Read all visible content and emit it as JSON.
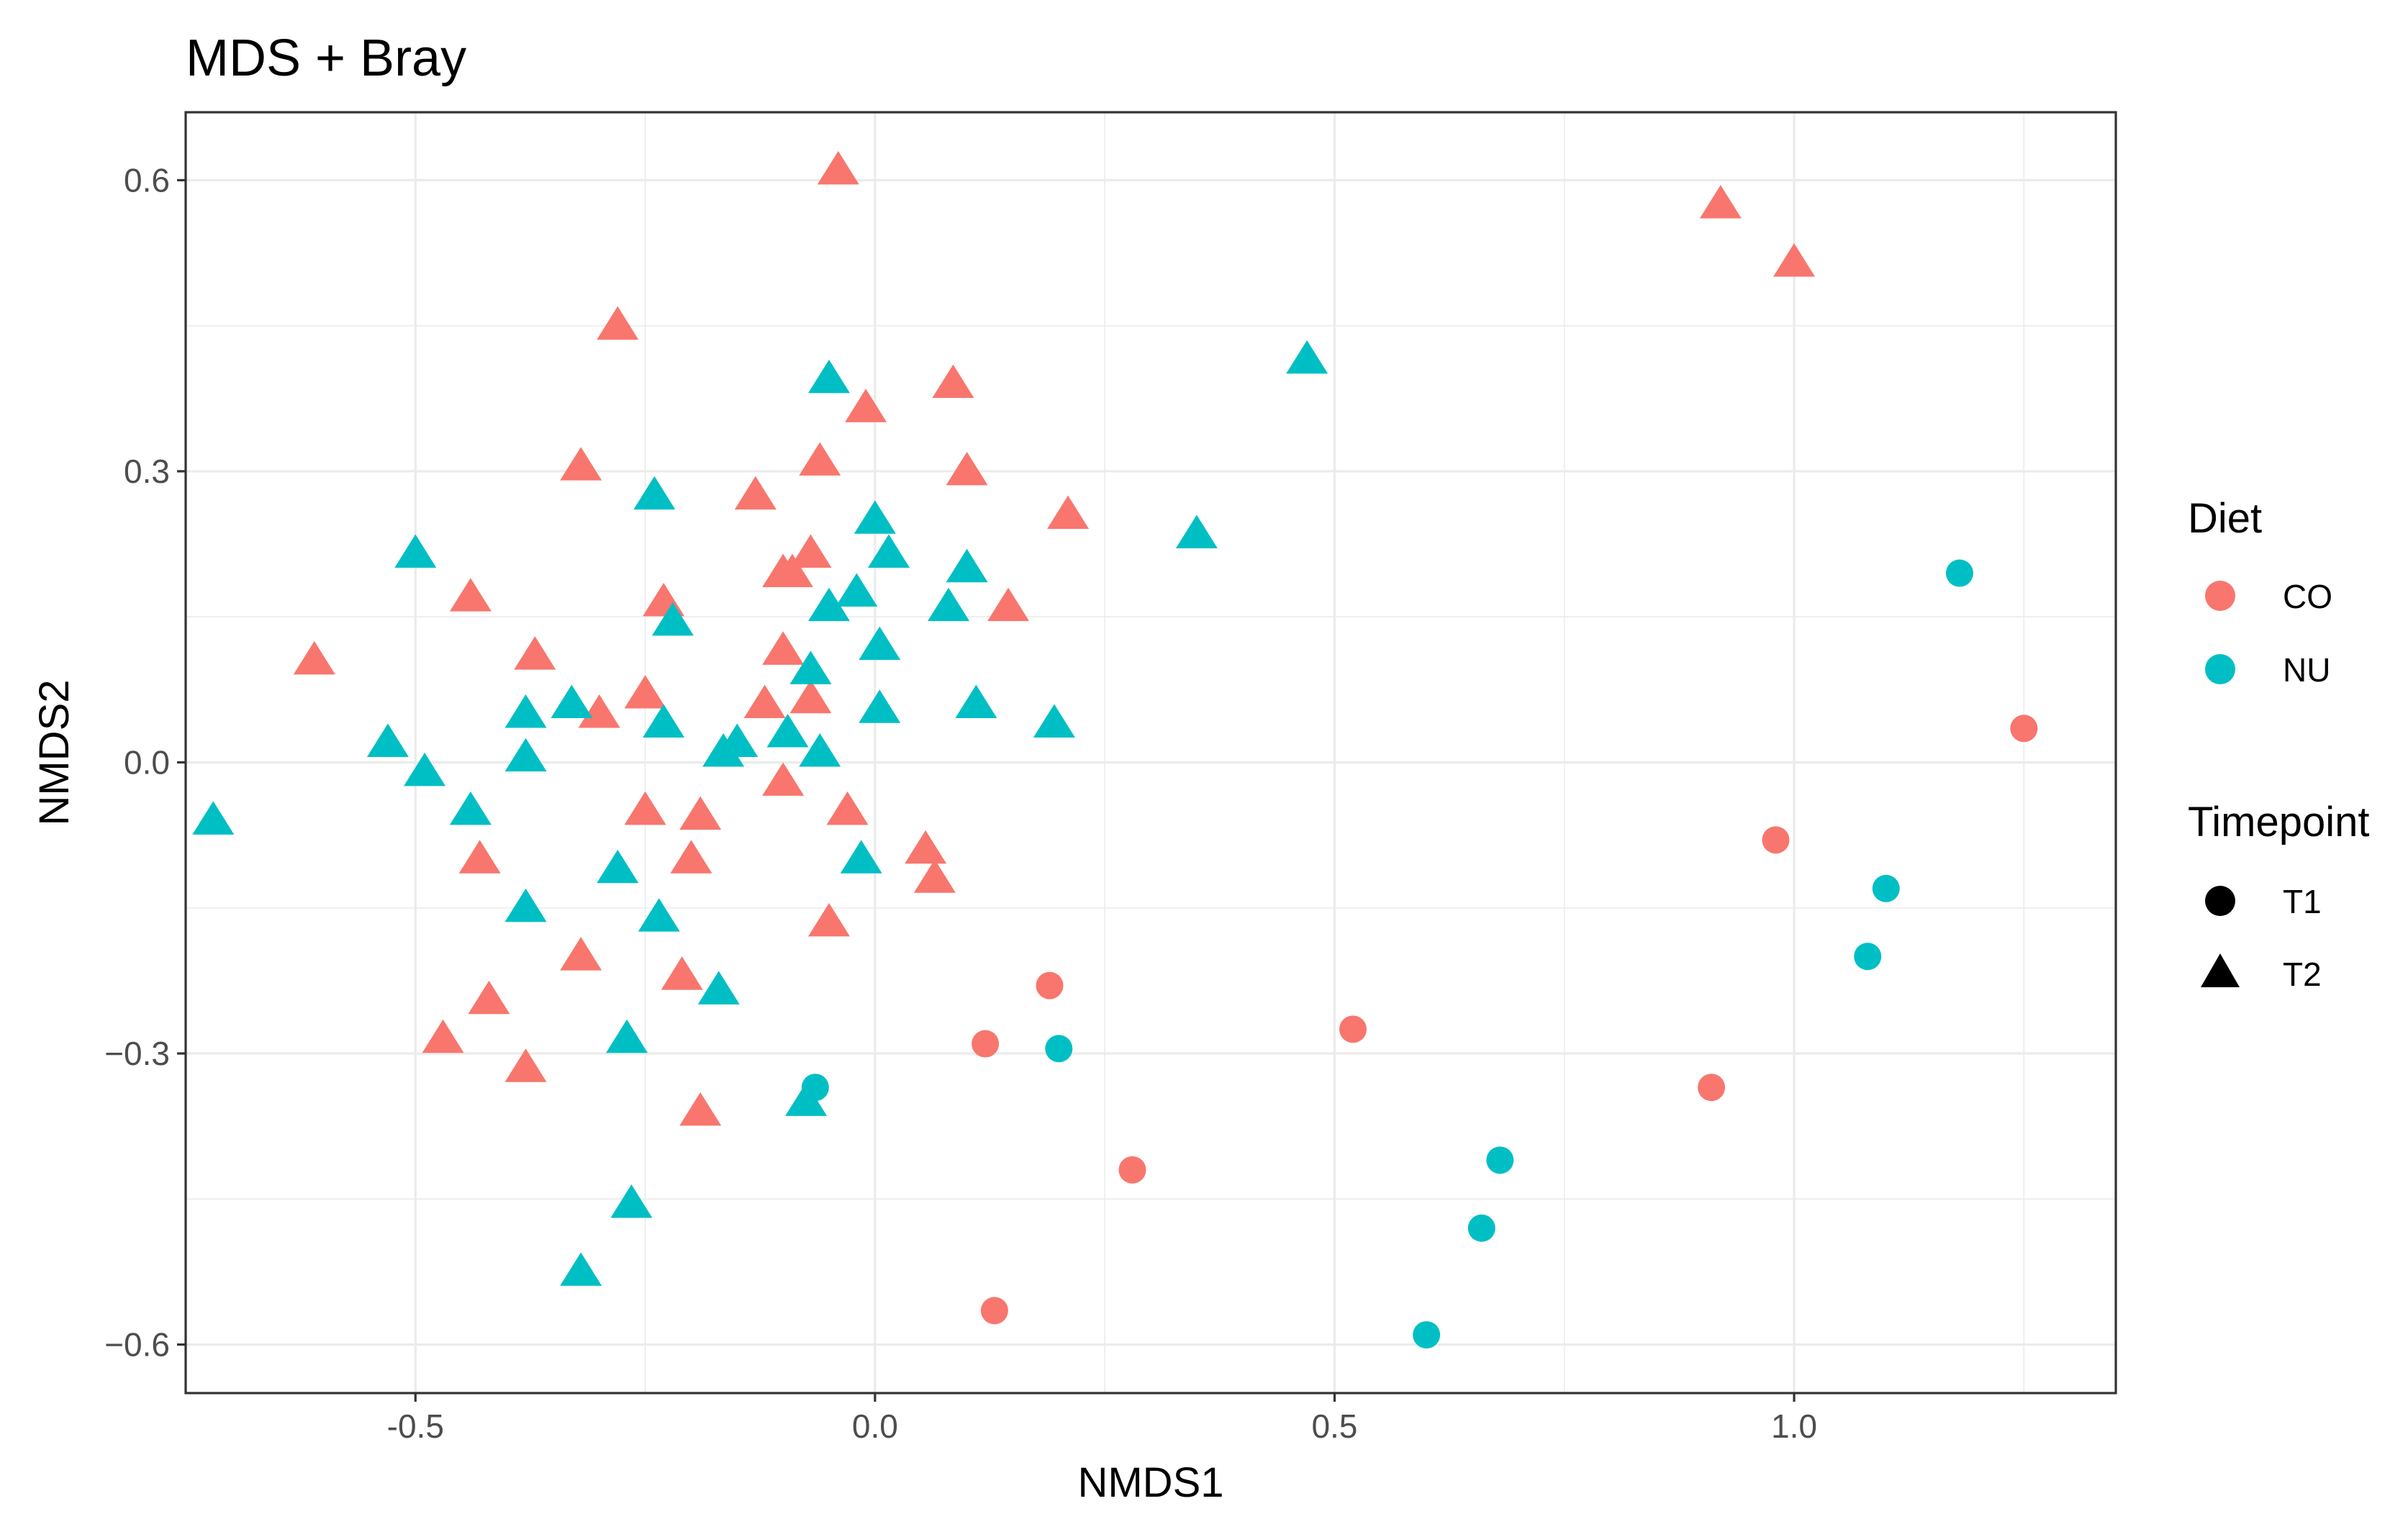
{
  "chart_data": {
    "type": "scatter",
    "title": "MDS + Bray",
    "xlabel": "NMDS1",
    "ylabel": "NMDS2",
    "xlim": [
      -0.75,
      1.35
    ],
    "ylim": [
      -0.65,
      0.67
    ],
    "x_ticks": [
      -0.5,
      0.0,
      0.5,
      1.0
    ],
    "x_tick_labels": [
      "-0.5",
      "0.0",
      "0.5",
      "1.0"
    ],
    "y_ticks": [
      -0.6,
      -0.3,
      0.0,
      0.3,
      0.6
    ],
    "y_tick_labels": [
      "−0.6",
      "−0.3",
      "0.0",
      "0.3",
      "0.6"
    ],
    "grid": true,
    "legend_placement": "right",
    "color_legend": {
      "title": "Diet",
      "entries": [
        {
          "label": "CO",
          "color": "#F8766D"
        },
        {
          "label": "NU",
          "color": "#00BFC4"
        }
      ]
    },
    "shape_legend": {
      "title": "Timepoint",
      "entries": [
        {
          "label": "T1",
          "shape": "circle"
        },
        {
          "label": "T2",
          "shape": "triangle"
        }
      ]
    },
    "series": [
      {
        "name": "CO-T1",
        "diet": "CO",
        "timepoint": "T1",
        "points": [
          [
            0.19,
            -0.23
          ],
          [
            0.12,
            -0.29
          ],
          [
            0.28,
            -0.42
          ],
          [
            0.13,
            -0.565
          ],
          [
            0.52,
            -0.275
          ],
          [
            0.98,
            -0.08
          ],
          [
            0.91,
            -0.335
          ],
          [
            1.25,
            0.035
          ]
        ]
      },
      {
        "name": "NU-T1",
        "diet": "NU",
        "timepoint": "T1",
        "points": [
          [
            0.2,
            -0.295
          ],
          [
            -0.065,
            -0.335
          ],
          [
            0.68,
            -0.41
          ],
          [
            0.66,
            -0.48
          ],
          [
            0.6,
            -0.59
          ],
          [
            1.1,
            -0.13
          ],
          [
            1.08,
            -0.2
          ],
          [
            1.18,
            0.195
          ]
        ]
      },
      {
        "name": "CO-T2",
        "diet": "CO",
        "timepoint": "T2",
        "points": [
          [
            -0.04,
            0.61
          ],
          [
            0.92,
            0.575
          ],
          [
            1.0,
            0.515
          ],
          [
            -0.28,
            0.45
          ],
          [
            0.085,
            0.39
          ],
          [
            -0.01,
            0.365
          ],
          [
            -0.32,
            0.305
          ],
          [
            -0.06,
            0.31
          ],
          [
            0.1,
            0.3
          ],
          [
            -0.13,
            0.275
          ],
          [
            0.21,
            0.255
          ],
          [
            -0.07,
            0.215
          ],
          [
            -0.1,
            0.195
          ],
          [
            -0.09,
            0.195
          ],
          [
            -0.44,
            0.17
          ],
          [
            -0.23,
            0.165
          ],
          [
            0.145,
            0.16
          ],
          [
            -0.61,
            0.105
          ],
          [
            -0.37,
            0.11
          ],
          [
            -0.1,
            0.115
          ],
          [
            -0.25,
            0.07
          ],
          [
            -0.3,
            0.05
          ],
          [
            -0.12,
            0.06
          ],
          [
            -0.07,
            0.065
          ],
          [
            -0.1,
            -0.02
          ],
          [
            -0.25,
            -0.05
          ],
          [
            -0.19,
            -0.055
          ],
          [
            -0.03,
            -0.05
          ],
          [
            -0.43,
            -0.1
          ],
          [
            -0.2,
            -0.1
          ],
          [
            0.055,
            -0.09
          ],
          [
            0.065,
            -0.12
          ],
          [
            -0.05,
            -0.165
          ],
          [
            -0.32,
            -0.2
          ],
          [
            -0.21,
            -0.22
          ],
          [
            -0.42,
            -0.245
          ],
          [
            -0.47,
            -0.285
          ],
          [
            -0.38,
            -0.315
          ],
          [
            -0.19,
            -0.36
          ]
        ]
      },
      {
        "name": "NU-T2",
        "diet": "NU",
        "timepoint": "T2",
        "points": [
          [
            -0.05,
            0.395
          ],
          [
            0.47,
            0.415
          ],
          [
            -0.24,
            0.275
          ],
          [
            0.0,
            0.25
          ],
          [
            0.35,
            0.235
          ],
          [
            0.015,
            0.215
          ],
          [
            -0.5,
            0.215
          ],
          [
            0.1,
            0.2
          ],
          [
            -0.02,
            0.175
          ],
          [
            -0.05,
            0.16
          ],
          [
            0.08,
            0.16
          ],
          [
            -0.22,
            0.145
          ],
          [
            0.005,
            0.12
          ],
          [
            -0.07,
            0.095
          ],
          [
            -0.33,
            0.06
          ],
          [
            0.11,
            0.06
          ],
          [
            0.005,
            0.055
          ],
          [
            -0.38,
            0.05
          ],
          [
            -0.23,
            0.04
          ],
          [
            0.195,
            0.04
          ],
          [
            -0.095,
            0.03
          ],
          [
            -0.53,
            0.02
          ],
          [
            -0.15,
            0.02
          ],
          [
            -0.165,
            0.01
          ],
          [
            -0.06,
            0.01
          ],
          [
            -0.38,
            0.005
          ],
          [
            -0.49,
            -0.01
          ],
          [
            -0.44,
            -0.05
          ],
          [
            -0.72,
            -0.06
          ],
          [
            -0.015,
            -0.1
          ],
          [
            -0.28,
            -0.11
          ],
          [
            -0.38,
            -0.15
          ],
          [
            -0.235,
            -0.16
          ],
          [
            -0.17,
            -0.235
          ],
          [
            -0.27,
            -0.285
          ],
          [
            -0.075,
            -0.35
          ],
          [
            -0.265,
            -0.455
          ],
          [
            -0.32,
            -0.525
          ]
        ]
      }
    ]
  }
}
